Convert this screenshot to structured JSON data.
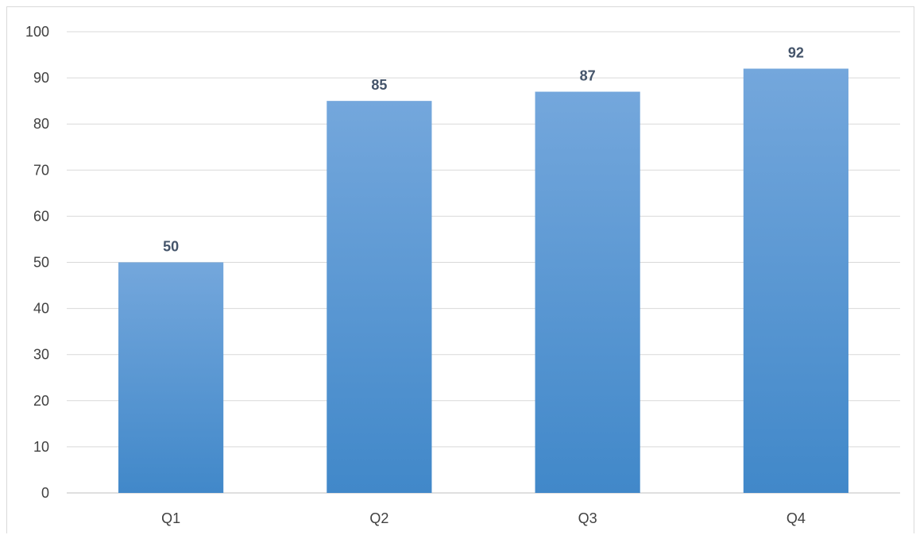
{
  "chart_data": {
    "type": "bar",
    "title": "",
    "xlabel": "",
    "ylabel": "",
    "categories": [
      "Q1",
      "Q2",
      "Q3",
      "Q4"
    ],
    "values": [
      50,
      85,
      87,
      92
    ],
    "data_labels": [
      "50",
      "85",
      "87",
      "92"
    ],
    "ylim": [
      0,
      100
    ],
    "yticks": [
      0,
      10,
      20,
      30,
      40,
      50,
      60,
      70,
      80,
      90,
      100
    ],
    "ytick_labels": [
      "0",
      "10",
      "20",
      "30",
      "40",
      "50",
      "60",
      "70",
      "80",
      "90",
      "100"
    ],
    "grid": true,
    "legend": "none",
    "colors": {
      "bar_top": "#74a7dc",
      "bar_bottom": "#4188c9",
      "data_label": "#44546a",
      "tick_label": "#404040",
      "grid": "#d9d9d9"
    }
  }
}
